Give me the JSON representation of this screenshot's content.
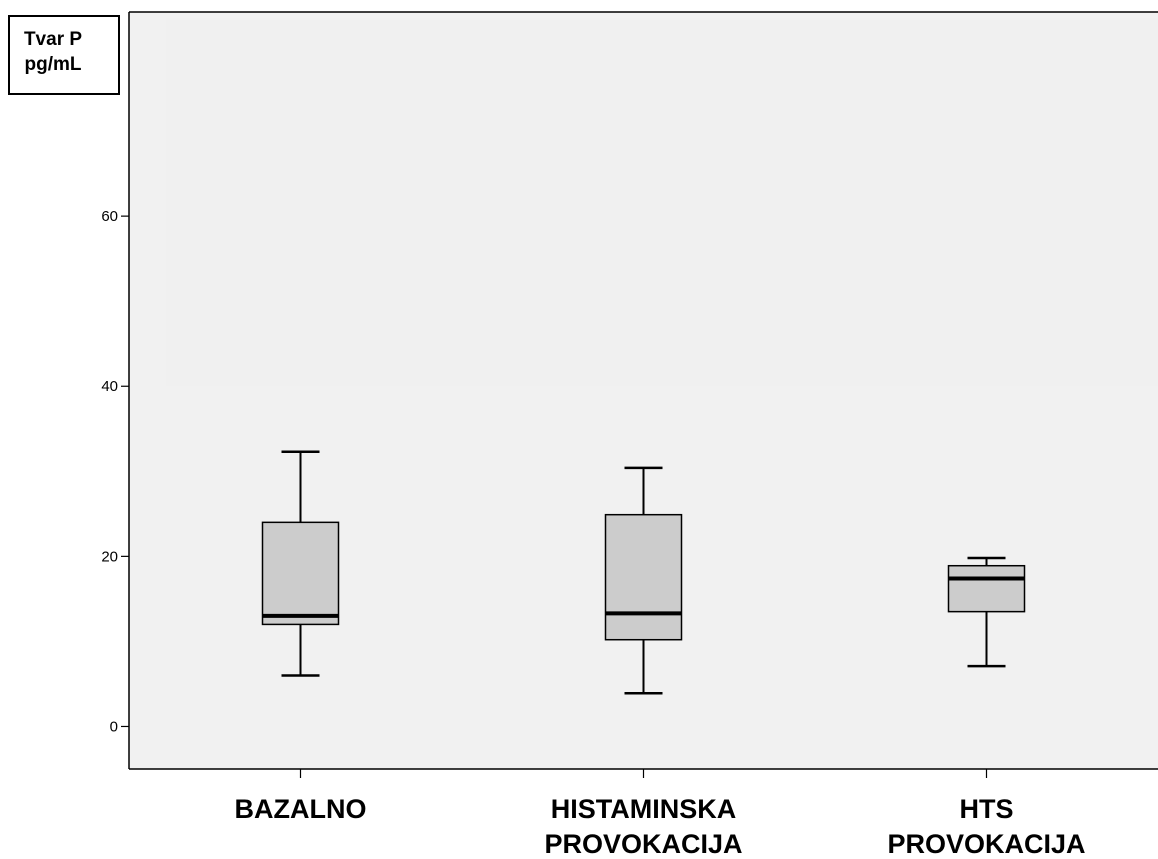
{
  "chart_data": {
    "type": "boxplot",
    "ylabel_lines": [
      "Tvar P",
      "pg/mL"
    ],
    "ylim": [
      -5,
      84
    ],
    "yticks": [
      0,
      20,
      40,
      60
    ],
    "grid": false,
    "box_color": "#cccccc",
    "plot_background": "#f1f1f1",
    "categories": [
      {
        "label_lines": [
          "BAZALNO"
        ],
        "min": 6,
        "q1": 12,
        "median": 13,
        "q3": 24,
        "max": 32.3
      },
      {
        "label_lines": [
          "HISTAMINSKA",
          "PROVOKACIJA"
        ],
        "min": 3.9,
        "q1": 10.2,
        "median": 13.3,
        "q3": 24.9,
        "max": 30.4
      },
      {
        "label_lines": [
          "HTS",
          "PROVOKACIJA"
        ],
        "min": 7.1,
        "q1": 13.5,
        "median": 17.4,
        "q3": 18.9,
        "max": 19.8
      }
    ]
  }
}
